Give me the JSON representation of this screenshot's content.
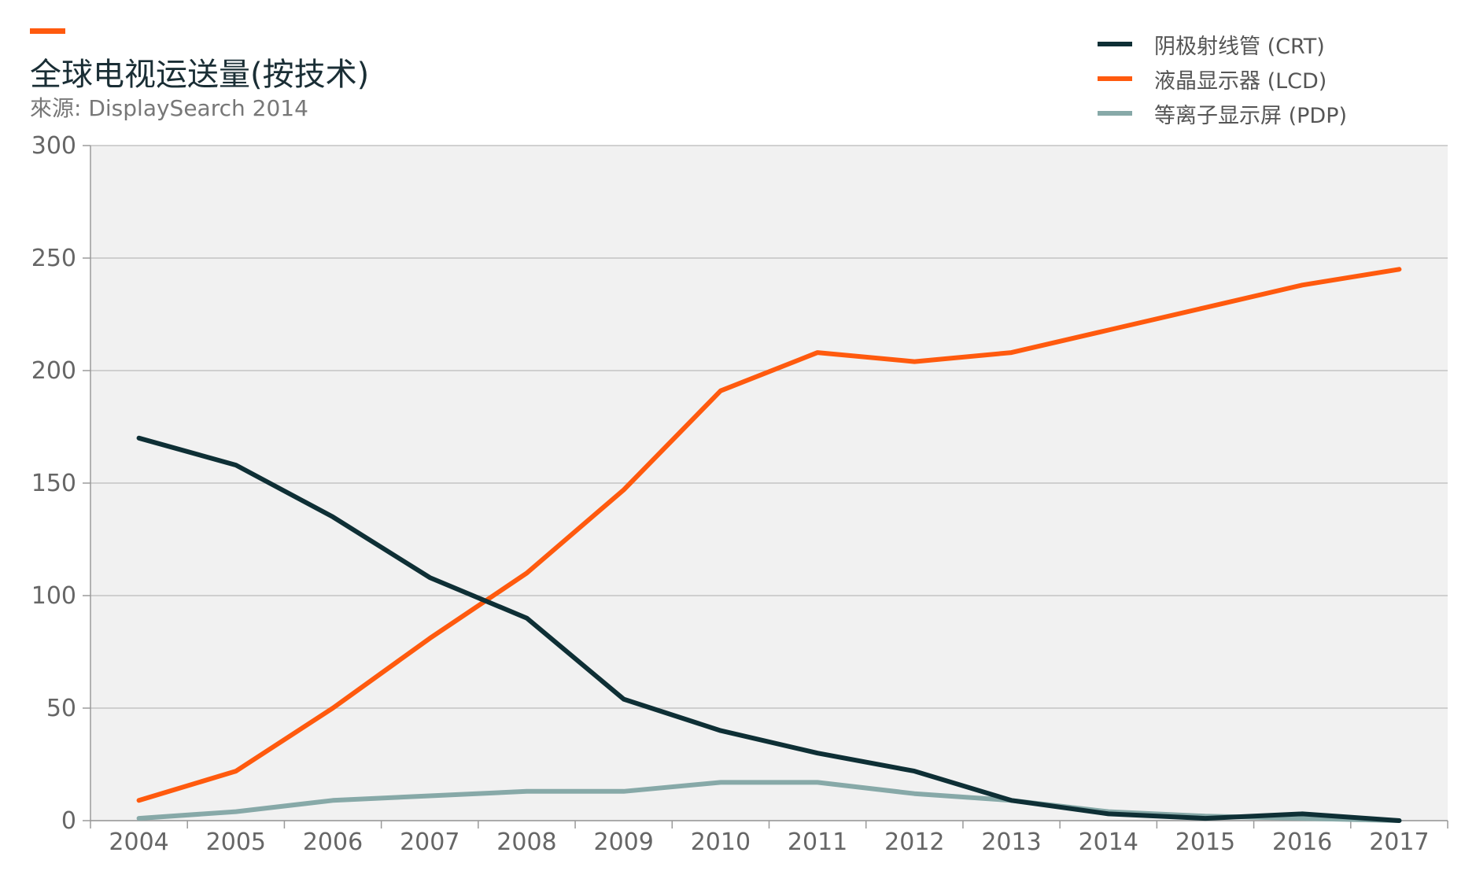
{
  "header": {
    "title": "全球电视运送量(按技术)",
    "subtitle": "來源: DisplaySearch 2014",
    "accent_color": "#ff5a0e"
  },
  "chart_data": {
    "type": "line",
    "title": "全球电视运送量(按技术)",
    "subtitle": "來源: DisplaySearch 2014",
    "xlabel": "",
    "ylabel": "",
    "x": [
      "2004",
      "2005",
      "2006",
      "2007",
      "2008",
      "2009",
      "2010",
      "2011",
      "2012",
      "2013",
      "2014",
      "2015",
      "2016",
      "2017"
    ],
    "ylim": [
      0,
      300
    ],
    "yticks": [
      0,
      50,
      100,
      150,
      200,
      250,
      300
    ],
    "grid": true,
    "legend_position": "top-right",
    "background": "#f1f1f1",
    "series": [
      {
        "name": "阴极射线管 (CRT)",
        "color": "#0e2f35",
        "values": [
          170,
          158,
          135,
          108,
          90,
          54,
          40,
          30,
          22,
          9,
          3,
          1,
          3,
          0
        ]
      },
      {
        "name": "液晶显示器 (LCD)",
        "color": "#ff5a0e",
        "values": [
          9,
          22,
          50,
          81,
          110,
          147,
          191,
          208,
          204,
          208,
          218,
          228,
          238,
          245
        ]
      },
      {
        "name": "等离子显示屏 (PDP)",
        "color": "#87a9a8",
        "values": [
          1,
          4,
          9,
          11,
          13,
          13,
          17,
          17,
          12,
          9,
          4,
          2,
          1,
          0
        ]
      }
    ]
  }
}
